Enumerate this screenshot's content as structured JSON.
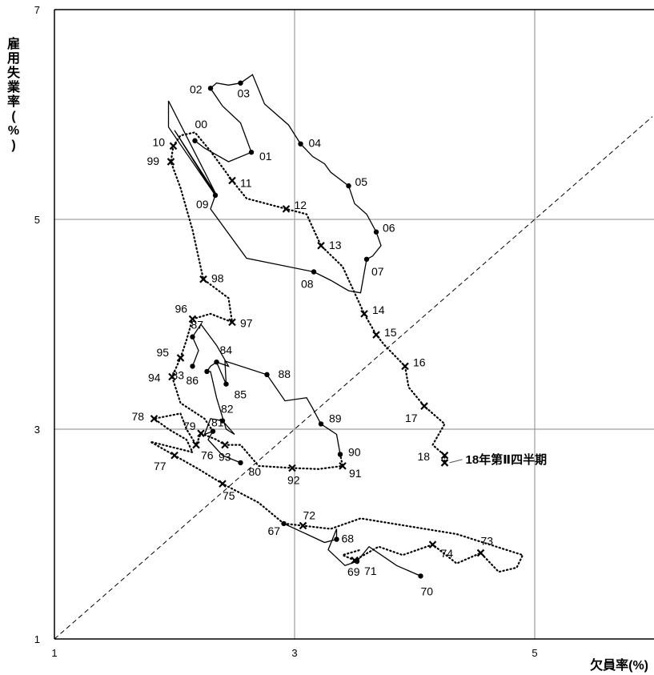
{
  "chart_data": {
    "type": "line",
    "xlabel": "欠員率(%)",
    "ylabel_chars": [
      "雇",
      "用",
      "失",
      "業",
      "率",
      "(",
      "%",
      ")"
    ],
    "xlim": [
      1,
      5.98
    ],
    "ylim": [
      1,
      7
    ],
    "xticks": [
      "1",
      "3",
      "5"
    ],
    "yticks": [
      "1",
      "3",
      "5",
      "7"
    ],
    "grid": true,
    "reference_line": "45-degree dashed",
    "annotation": "18年第Ⅱ四半期",
    "annotation_point": [
      4.25,
      2.68
    ],
    "series": [
      {
        "style": "solid",
        "label_points": [
          {
            "label": "67",
            "x": 2.91,
            "y": 2.1
          },
          {
            "label": "68",
            "x": 3.35,
            "y": 1.95
          },
          {
            "label": "69",
            "x": 3.52,
            "y": 1.74
          },
          {
            "label": "70",
            "x": 4.05,
            "y": 1.6
          },
          {
            "label": "80",
            "x": 2.55,
            "y": 2.68
          },
          {
            "label": "81",
            "x": 2.32,
            "y": 2.98
          },
          {
            "label": "82",
            "x": 2.4,
            "y": 3.08
          },
          {
            "label": "83",
            "x": 2.15,
            "y": 3.6
          },
          {
            "label": "84",
            "x": 2.35,
            "y": 3.64
          },
          {
            "label": "85",
            "x": 2.43,
            "y": 3.43
          },
          {
            "label": "86",
            "x": 2.27,
            "y": 3.55
          },
          {
            "label": "87",
            "x": 2.15,
            "y": 3.88
          },
          {
            "label": "88",
            "x": 2.77,
            "y": 3.52
          },
          {
            "label": "89",
            "x": 3.22,
            "y": 3.05
          },
          {
            "label": "90",
            "x": 3.38,
            "y": 2.76
          },
          {
            "label": "00",
            "x": 2.17,
            "y": 5.75
          },
          {
            "label": "01",
            "x": 2.64,
            "y": 5.64
          },
          {
            "label": "02",
            "x": 2.3,
            "y": 6.25
          },
          {
            "label": "03",
            "x": 2.55,
            "y": 6.3
          },
          {
            "label": "04",
            "x": 3.05,
            "y": 5.72
          },
          {
            "label": "05",
            "x": 3.45,
            "y": 5.32
          },
          {
            "label": "06",
            "x": 3.68,
            "y": 4.88
          },
          {
            "label": "07",
            "x": 3.6,
            "y": 4.62
          },
          {
            "label": "08",
            "x": 3.16,
            "y": 4.5
          },
          {
            "label": "09",
            "x": 2.34,
            "y": 5.23
          }
        ],
        "path_segments": [
          [
            [
              2.91,
              2.1
            ],
            [
              3.1,
              2.0
            ],
            [
              3.25,
              1.92
            ],
            [
              3.35,
              1.95
            ],
            [
              3.35,
              2.05
            ],
            [
              3.28,
              1.85
            ],
            [
              3.42,
              1.7
            ],
            [
              3.52,
              1.74
            ],
            [
              3.62,
              1.88
            ],
            [
              3.85,
              1.7
            ],
            [
              4.05,
              1.6
            ]
          ],
          [
            [
              2.55,
              2.68
            ],
            [
              2.4,
              2.75
            ],
            [
              2.28,
              2.9
            ],
            [
              2.32,
              2.98
            ],
            [
              2.25,
              2.95
            ],
            [
              2.3,
              3.1
            ],
            [
              2.4,
              3.08
            ],
            [
              2.5,
              2.95
            ],
            [
              2.43,
              3.0
            ],
            [
              2.35,
              3.3
            ],
            [
              2.3,
              3.55
            ],
            [
              2.27,
              3.55
            ],
            [
              2.3,
              3.6
            ],
            [
              2.35,
              3.64
            ],
            [
              2.43,
              3.43
            ],
            [
              2.42,
              3.65
            ],
            [
              2.77,
              3.52
            ],
            [
              2.92,
              3.27
            ],
            [
              3.1,
              3.3
            ],
            [
              3.15,
              3.2
            ],
            [
              3.22,
              3.05
            ],
            [
              3.35,
              2.95
            ],
            [
              3.38,
              2.76
            ]
          ],
          [
            [
              2.15,
              3.6
            ],
            [
              2.2,
              3.75
            ],
            [
              2.15,
              3.88
            ],
            [
              2.22,
              4.0
            ],
            [
              2.35,
              3.8
            ],
            [
              2.45,
              3.6
            ],
            [
              2.35,
              3.64
            ]
          ],
          [
            [
              2.17,
              5.75
            ],
            [
              2.25,
              5.68
            ],
            [
              2.45,
              5.55
            ],
            [
              2.64,
              5.64
            ],
            [
              2.55,
              5.92
            ],
            [
              2.4,
              6.08
            ],
            [
              2.3,
              6.25
            ],
            [
              2.35,
              6.3
            ],
            [
              2.45,
              6.28
            ],
            [
              2.55,
              6.3
            ],
            [
              2.65,
              6.38
            ],
            [
              2.75,
              6.1
            ],
            [
              2.95,
              5.9
            ],
            [
              3.05,
              5.72
            ],
            [
              3.15,
              5.6
            ],
            [
              3.25,
              5.53
            ],
            [
              3.3,
              5.45
            ],
            [
              3.45,
              5.32
            ],
            [
              3.5,
              5.15
            ],
            [
              3.6,
              5.05
            ],
            [
              3.68,
              4.88
            ],
            [
              3.72,
              4.75
            ],
            [
              3.65,
              4.65
            ],
            [
              3.6,
              4.62
            ],
            [
              3.55,
              4.3
            ],
            [
              3.45,
              4.32
            ],
            [
              3.3,
              4.42
            ],
            [
              3.16,
              4.5
            ],
            [
              2.6,
              4.63
            ],
            [
              2.3,
              5.1
            ],
            [
              2.34,
              5.23
            ],
            [
              2.0,
              5.85
            ],
            [
              2.35,
              5.23
            ],
            [
              1.95,
              6.13
            ],
            [
              1.95,
              5.88
            ],
            [
              2.34,
              5.23
            ]
          ]
        ]
      },
      {
        "style": "dotted",
        "label_points": [
          {
            "label": "71",
            "x": 3.5,
            "y": 1.75
          },
          {
            "label": "72",
            "x": 3.07,
            "y": 2.08
          },
          {
            "label": "73",
            "x": 4.55,
            "y": 1.82
          },
          {
            "label": "74",
            "x": 4.15,
            "y": 1.9
          },
          {
            "label": "75",
            "x": 2.4,
            "y": 2.48
          },
          {
            "label": "76",
            "x": 2.18,
            "y": 2.85
          },
          {
            "label": "77",
            "x": 2.0,
            "y": 2.75
          },
          {
            "label": "78",
            "x": 1.83,
            "y": 3.1
          },
          {
            "label": "79",
            "x": 2.22,
            "y": 2.96
          },
          {
            "label": "91",
            "x": 3.4,
            "y": 2.65
          },
          {
            "label": "92",
            "x": 2.98,
            "y": 2.63
          },
          {
            "label": "93",
            "x": 2.42,
            "y": 2.85
          },
          {
            "label": "94",
            "x": 1.98,
            "y": 3.5
          },
          {
            "label": "95",
            "x": 2.05,
            "y": 3.68
          },
          {
            "label": "96",
            "x": 2.15,
            "y": 4.05
          },
          {
            "label": "97",
            "x": 2.48,
            "y": 4.02
          },
          {
            "label": "98",
            "x": 2.24,
            "y": 4.43
          },
          {
            "label": "99",
            "x": 1.97,
            "y": 5.55
          },
          {
            "label": "10",
            "x": 1.99,
            "y": 5.7
          },
          {
            "label": "11",
            "x": 2.48,
            "y": 5.37
          },
          {
            "label": "12",
            "x": 2.93,
            "y": 5.1
          },
          {
            "label": "13",
            "x": 3.22,
            "y": 4.75
          },
          {
            "label": "14",
            "x": 3.58,
            "y": 4.1
          },
          {
            "label": "15",
            "x": 3.68,
            "y": 3.9
          },
          {
            "label": "16",
            "x": 3.92,
            "y": 3.6
          },
          {
            "label": "17",
            "x": 4.08,
            "y": 3.22
          },
          {
            "label": "18",
            "x": 4.25,
            "y": 2.75
          },
          {
            "label": "18b",
            "x": 4.25,
            "y": 2.68
          }
        ],
        "path_segments": [
          [
            [
              2.91,
              2.1
            ],
            [
              3.07,
              2.08
            ],
            [
              3.3,
              2.05
            ],
            [
              3.55,
              2.15
            ],
            [
              4.35,
              2.0
            ],
            [
              4.9,
              1.8
            ],
            [
              4.85,
              1.68
            ],
            [
              4.7,
              1.64
            ],
            [
              4.55,
              1.82
            ],
            [
              4.35,
              1.72
            ],
            [
              4.15,
              1.9
            ],
            [
              3.9,
              1.8
            ],
            [
              3.7,
              1.88
            ],
            [
              3.5,
              1.75
            ],
            [
              3.4,
              1.8
            ],
            [
              3.55,
              1.85
            ]
          ],
          [
            [
              2.91,
              2.1
            ],
            [
              2.7,
              2.3
            ],
            [
              2.4,
              2.48
            ],
            [
              2.2,
              2.62
            ],
            [
              2.0,
              2.75
            ],
            [
              1.8,
              2.88
            ],
            [
              2.15,
              2.78
            ],
            [
              2.1,
              2.9
            ],
            [
              1.95,
              3.0
            ],
            [
              1.83,
              3.1
            ],
            [
              2.05,
              3.15
            ],
            [
              2.1,
              3.0
            ],
            [
              2.18,
              2.85
            ],
            [
              2.22,
              2.96
            ],
            [
              2.35,
              2.9
            ],
            [
              2.42,
              2.85
            ],
            [
              2.55,
              2.85
            ],
            [
              2.7,
              2.65
            ],
            [
              2.98,
              2.63
            ],
            [
              3.2,
              2.62
            ],
            [
              3.4,
              2.65
            ],
            [
              3.38,
              2.76
            ]
          ],
          [
            [
              2.32,
              2.98
            ],
            [
              2.25,
              3.1
            ],
            [
              2.05,
              3.25
            ],
            [
              1.98,
              3.5
            ],
            [
              2.05,
              3.68
            ],
            [
              2.1,
              3.85
            ],
            [
              2.15,
              4.05
            ],
            [
              2.3,
              4.1
            ],
            [
              2.48,
              4.02
            ],
            [
              2.45,
              4.25
            ],
            [
              2.24,
              4.43
            ],
            [
              2.15,
              4.9
            ],
            [
              2.05,
              5.3
            ],
            [
              1.97,
              5.55
            ],
            [
              1.99,
              5.7
            ],
            [
              2.05,
              5.8
            ],
            [
              2.17,
              5.83
            ],
            [
              2.3,
              5.65
            ],
            [
              2.48,
              5.37
            ],
            [
              2.6,
              5.2
            ],
            [
              2.93,
              5.1
            ],
            [
              3.1,
              5.05
            ],
            [
              3.22,
              4.75
            ],
            [
              3.4,
              4.55
            ],
            [
              3.58,
              4.1
            ],
            [
              3.68,
              3.9
            ],
            [
              3.75,
              3.8
            ],
            [
              3.92,
              3.6
            ],
            [
              3.95,
              3.4
            ],
            [
              4.08,
              3.22
            ],
            [
              4.25,
              3.05
            ],
            [
              4.15,
              2.85
            ],
            [
              4.25,
              2.75
            ],
            [
              4.25,
              2.68
            ]
          ]
        ]
      }
    ],
    "labels_shown": [
      "67",
      "68",
      "69",
      "70",
      "71",
      "72",
      "73",
      "74",
      "75",
      "76",
      "77",
      "78",
      "79",
      "80",
      "81",
      "82",
      "83",
      "84",
      "85",
      "86",
      "87",
      "88",
      "89",
      "90",
      "91",
      "92",
      "93",
      "94",
      "95",
      "96",
      "97",
      "98",
      "99",
      "00",
      "01",
      "02",
      "03",
      "04",
      "05",
      "06",
      "07",
      "08",
      "09",
      "10",
      "11",
      "12",
      "13",
      "14",
      "15",
      "16",
      "17",
      "18"
    ]
  }
}
